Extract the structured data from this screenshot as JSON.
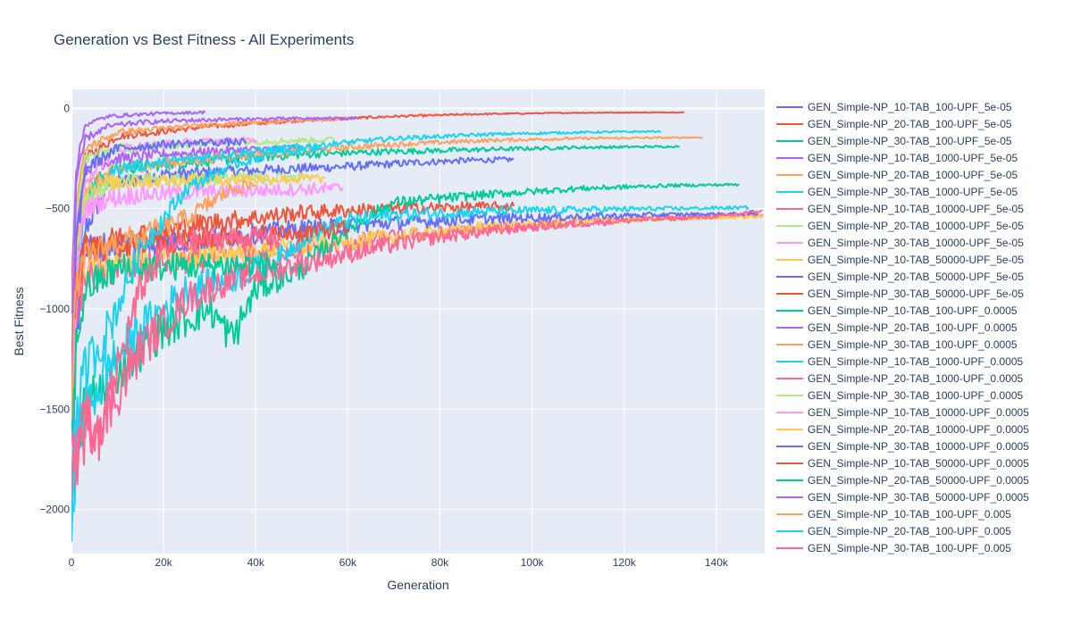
{
  "chart_data": {
    "type": "line",
    "title": "Generation vs Best Fitness - All Experiments",
    "xlabel": "Generation",
    "ylabel": "Best Fitness",
    "xlim": [
      0,
      150500
    ],
    "ylim": [
      -2220,
      95
    ],
    "x_ticks": [
      0,
      20000,
      40000,
      60000,
      80000,
      100000,
      120000,
      140000
    ],
    "x_tick_labels": [
      "0",
      "20k",
      "40k",
      "60k",
      "80k",
      "100k",
      "120k",
      "140k"
    ],
    "y_ticks": [
      0,
      -500,
      -1000,
      -1500,
      -2000
    ],
    "y_tick_labels": [
      "0",
      "−500",
      "−1000",
      "−1500",
      "−2000"
    ],
    "grid": true,
    "legend_position": "right",
    "series": [
      {
        "name": "GEN_Simple-NP_10-TAB_100-UPF_5e-05",
        "color": "#636efa",
        "x": [
          0,
          1000,
          3000,
          8000,
          20000,
          40000,
          60000,
          75000,
          85000,
          96000
        ],
        "y": [
          -2100,
          -1200,
          -600,
          -380,
          -330,
          -310,
          -290,
          -270,
          -260,
          -255
        ]
      },
      {
        "name": "GEN_Simple-NP_20-TAB_100-UPF_5e-05",
        "color": "#EF553B",
        "x": [
          0,
          1000,
          3000,
          10000,
          30000,
          50000,
          70000,
          90000,
          110000,
          133000
        ],
        "y": [
          -1500,
          -700,
          -250,
          -140,
          -90,
          -60,
          -40,
          -28,
          -22,
          -20
        ]
      },
      {
        "name": "GEN_Simple-NP_30-TAB_100-UPF_5e-05",
        "color": "#00cc96",
        "x": [
          0,
          1000,
          3000,
          10000,
          30000,
          50000,
          70000,
          90000,
          110000,
          132000
        ],
        "y": [
          -1800,
          -900,
          -400,
          -300,
          -260,
          -230,
          -215,
          -205,
          -195,
          -190
        ]
      },
      {
        "name": "GEN_Simple-NP_10-TAB_1000-UPF_5e-05",
        "color": "#ab63fa",
        "x": [
          0,
          1000,
          3000,
          10000,
          20000,
          30000,
          40000,
          50000
        ],
        "y": [
          -1600,
          -600,
          -300,
          -250,
          -230,
          -215,
          -205,
          -200
        ]
      },
      {
        "name": "GEN_Simple-NP_20-TAB_1000-UPF_5e-05",
        "color": "#FFA15A",
        "x": [
          0,
          1000,
          3000,
          10000,
          30000,
          50000,
          70000,
          90000,
          110000,
          137000
        ],
        "y": [
          -1700,
          -800,
          -400,
          -300,
          -250,
          -210,
          -180,
          -160,
          -150,
          -145
        ]
      },
      {
        "name": "GEN_Simple-NP_30-TAB_1000-UPF_5e-05",
        "color": "#19d3f3",
        "x": [
          0,
          1000,
          3000,
          10000,
          30000,
          50000,
          70000,
          90000,
          110000,
          128000
        ],
        "y": [
          -2000,
          -900,
          -450,
          -300,
          -240,
          -190,
          -150,
          -130,
          -120,
          -115
        ]
      },
      {
        "name": "GEN_Simple-NP_10-TAB_10000-UPF_5e-05",
        "color": "#FF6692",
        "x": [
          0,
          1000,
          3000,
          10000,
          30000,
          50000,
          70000,
          90000,
          110000,
          130000,
          150000
        ],
        "y": [
          -1500,
          -1000,
          -850,
          -800,
          -750,
          -700,
          -640,
          -600,
          -570,
          -545,
          -530
        ]
      },
      {
        "name": "GEN_Simple-NP_20-TAB_10000-UPF_5e-05",
        "color": "#B6E880",
        "x": [
          0,
          1000,
          3000,
          8000,
          15000,
          20000,
          30000,
          40000,
          50000
        ],
        "y": [
          -1400,
          -700,
          -450,
          -380,
          -360,
          -355,
          -350,
          -348,
          -345
        ]
      },
      {
        "name": "GEN_Simple-NP_30-TAB_10000-UPF_5e-05",
        "color": "#FF97FF",
        "x": [
          0,
          1000,
          3000,
          8000,
          15000,
          25000,
          40000,
          55000,
          59000
        ],
        "y": [
          -1300,
          -800,
          -500,
          -450,
          -430,
          -420,
          -410,
          -400,
          -398
        ]
      },
      {
        "name": "GEN_Simple-NP_10-TAB_50000-UPF_5e-05",
        "color": "#FECB52",
        "x": [
          0,
          1000,
          3000,
          10000,
          30000,
          50000,
          70000,
          90000,
          110000,
          130000,
          150000
        ],
        "y": [
          -1200,
          -900,
          -780,
          -760,
          -730,
          -690,
          -640,
          -590,
          -565,
          -550,
          -540
        ]
      },
      {
        "name": "GEN_Simple-NP_20-TAB_50000-UPF_5e-05",
        "color": "#636efa",
        "x": [
          0,
          1000,
          3000,
          10000,
          30000,
          50000,
          70000,
          90000,
          110000,
          130000,
          149000
        ],
        "y": [
          -1100,
          -800,
          -700,
          -680,
          -650,
          -600,
          -570,
          -550,
          -540,
          -530,
          -525
        ]
      },
      {
        "name": "GEN_Simple-NP_30-TAB_50000-UPF_5e-05",
        "color": "#EF553B",
        "x": [
          0,
          1000,
          3000,
          10000,
          30000,
          50000,
          70000,
          90000,
          96000
        ],
        "y": [
          -1100,
          -900,
          -700,
          -650,
          -570,
          -520,
          -500,
          -490,
          -488
        ]
      },
      {
        "name": "GEN_Simple-NP_10-TAB_100-UPF_0.0005",
        "color": "#00cc96",
        "x": [
          0,
          1000,
          3000,
          10000,
          20000,
          30000,
          35000,
          40000,
          50000,
          60000,
          70000,
          90000,
          110000,
          130000,
          145000
        ],
        "y": [
          -1850,
          -1700,
          -1500,
          -1300,
          -1100,
          -1000,
          -1150,
          -900,
          -800,
          -600,
          -470,
          -430,
          -400,
          -385,
          -380
        ]
      },
      {
        "name": "GEN_Simple-NP_20-TAB_100-UPF_0.0005",
        "color": "#ab63fa",
        "x": [
          0,
          1000,
          3000,
          8000,
          15000,
          20000,
          25000,
          29000
        ],
        "y": [
          -900,
          -300,
          -80,
          -40,
          -30,
          -25,
          -22,
          -20
        ]
      },
      {
        "name": "GEN_Simple-NP_30-TAB_100-UPF_0.0005",
        "color": "#FFA15A",
        "x": [
          0,
          1000,
          3000,
          10000,
          30000,
          50000,
          60000
        ],
        "y": [
          -1000,
          -500,
          -200,
          -120,
          -80,
          -60,
          -55
        ]
      },
      {
        "name": "GEN_Simple-NP_10-TAB_1000-UPF_0.0005",
        "color": "#19d3f3",
        "x": [
          0,
          1000,
          3000,
          8000,
          15000,
          25000,
          35000,
          40000,
          45000,
          50000,
          60000,
          70000,
          90000,
          110000,
          130000,
          147000
        ],
        "y": [
          -2000,
          -1700,
          -1500,
          -1300,
          -1100,
          -900,
          -850,
          -800,
          -750,
          -650,
          -560,
          -530,
          -515,
          -505,
          -500,
          -495
        ]
      },
      {
        "name": "GEN_Simple-NP_20-TAB_1000-UPF_0.0005",
        "color": "#FF6692",
        "x": [
          0,
          1000,
          3000,
          8000,
          15000,
          25000,
          35000,
          45000,
          55000,
          65000,
          80000,
          100000,
          120000,
          140000,
          150000
        ],
        "y": [
          -1800,
          -1750,
          -1600,
          -1500,
          -1200,
          -950,
          -850,
          -800,
          -750,
          -700,
          -640,
          -590,
          -560,
          -540,
          -510
        ]
      },
      {
        "name": "GEN_Simple-NP_30-TAB_1000-UPF_0.0005",
        "color": "#B6E880",
        "x": [
          0,
          1000,
          3000,
          10000,
          30000,
          50000,
          57000
        ],
        "y": [
          -1300,
          -500,
          -250,
          -200,
          -170,
          -160,
          -155
        ]
      },
      {
        "name": "GEN_Simple-NP_10-TAB_10000-UPF_0.0005",
        "color": "#FF97FF",
        "x": [
          0,
          1000,
          3000,
          10000,
          25000,
          35000,
          40000
        ],
        "y": [
          -1600,
          -900,
          -350,
          -200,
          -170,
          -160,
          -158
        ]
      },
      {
        "name": "GEN_Simple-NP_20-TAB_10000-UPF_0.0005",
        "color": "#FECB52",
        "x": [
          0,
          1000,
          3000,
          8000,
          20000,
          40000,
          55000
        ],
        "y": [
          -1200,
          -650,
          -400,
          -370,
          -360,
          -352,
          -350
        ]
      },
      {
        "name": "GEN_Simple-NP_30-TAB_10000-UPF_0.0005",
        "color": "#636efa",
        "x": [
          0,
          1000,
          3000,
          10000,
          20000,
          30000,
          38000
        ],
        "y": [
          -1100,
          -700,
          -300,
          -200,
          -180,
          -170,
          -168
        ]
      },
      {
        "name": "GEN_Simple-NP_10-TAB_50000-UPF_0.0005",
        "color": "#EF553B",
        "x": [
          0,
          1000,
          3000,
          10000,
          20000,
          35000,
          50000,
          60000
        ],
        "y": [
          -1250,
          -900,
          -700,
          -680,
          -660,
          -640,
          -620,
          -600
        ]
      },
      {
        "name": "GEN_Simple-NP_20-TAB_50000-UPF_0.0005",
        "color": "#00cc96",
        "x": [
          0,
          1000,
          3000,
          10000,
          20000,
          35000,
          45000
        ],
        "y": [
          -1750,
          -1200,
          -900,
          -800,
          -790,
          -780,
          -780
        ]
      },
      {
        "name": "GEN_Simple-NP_30-TAB_50000-UPF_0.0005",
        "color": "#ab63fa",
        "x": [
          0,
          1000,
          3000,
          8000,
          15000,
          25000,
          35000,
          45000,
          55000,
          62000
        ],
        "y": [
          -1400,
          -400,
          -150,
          -90,
          -70,
          -60,
          -55,
          -52,
          -50,
          -50
        ]
      },
      {
        "name": "GEN_Simple-NP_10-TAB_100-UPF_0.005",
        "color": "#FFA15A",
        "x": [
          0,
          1000,
          3000,
          8000,
          15000,
          25000,
          35000,
          40000
        ],
        "y": [
          -1400,
          -900,
          -750,
          -680,
          -640,
          -550,
          -400,
          -380
        ]
      },
      {
        "name": "GEN_Simple-NP_20-TAB_100-UPF_0.005",
        "color": "#19d3f3",
        "x": [
          0,
          1000,
          3000,
          8000,
          15000,
          25000,
          35000,
          45000,
          55000
        ],
        "y": [
          -2000,
          -1600,
          -1300,
          -1100,
          -700,
          -400,
          -280,
          -220,
          -200
        ]
      },
      {
        "name": "GEN_Simple-NP_30-TAB_100-UPF_0.005",
        "color": "#FF6692",
        "x": [
          0,
          1000,
          3000,
          6000,
          10000,
          15000,
          20000,
          30000,
          45000
        ],
        "y": [
          -1500,
          -1800,
          -1500,
          -1700,
          -1300,
          -900,
          -700,
          -650,
          -640
        ]
      }
    ]
  }
}
